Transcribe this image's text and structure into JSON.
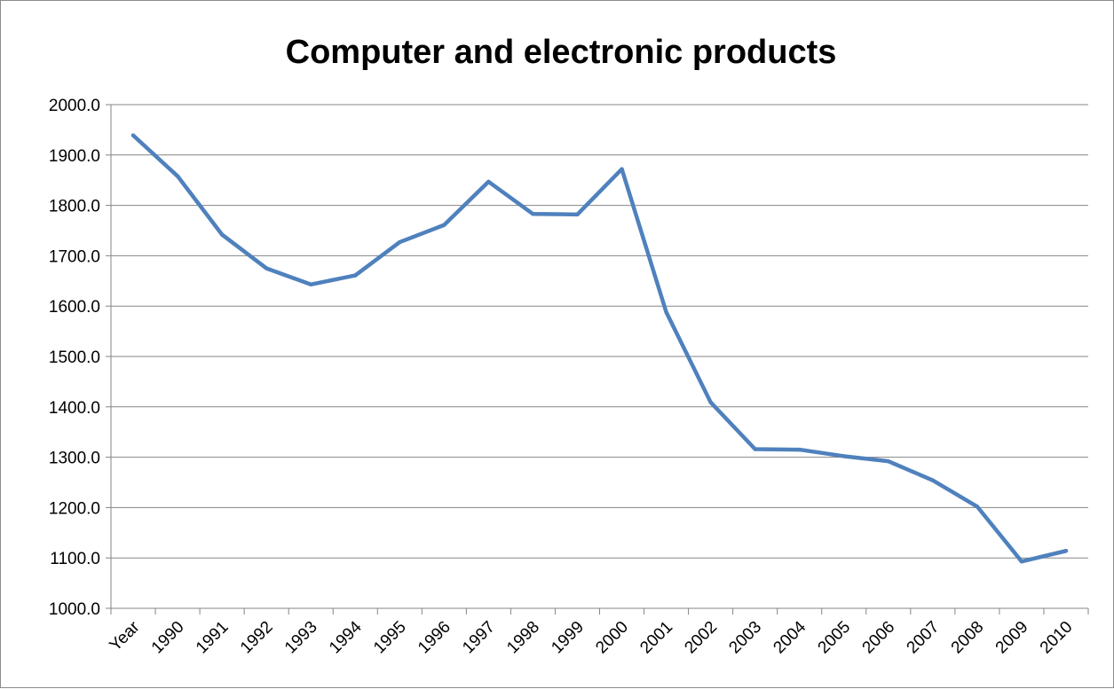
{
  "chart_data": {
    "type": "line",
    "title": "Computer and electronic products",
    "xlabel": "",
    "ylabel": "",
    "categories": [
      "Year",
      "1990",
      "1991",
      "1992",
      "1993",
      "1994",
      "1995",
      "1996",
      "1997",
      "1998",
      "1999",
      "2000",
      "2001",
      "2002",
      "2003",
      "2004",
      "2005",
      "2006",
      "2007",
      "2008",
      "2009",
      "2010"
    ],
    "series": [
      {
        "values": [
          1939,
          1858,
          1742,
          1675,
          1643,
          1661,
          1727,
          1761,
          1847,
          1783,
          1782,
          1872,
          1588,
          1409,
          1316,
          1315,
          1302,
          1292,
          1254,
          1202,
          1093,
          1114
        ]
      }
    ],
    "ylim": [
      1000,
      2000
    ],
    "yticks": [
      "1000.0",
      "1100.0",
      "1200.0",
      "1300.0",
      "1400.0",
      "1500.0",
      "1600.0",
      "1700.0",
      "1800.0",
      "1900.0",
      "2000.0"
    ],
    "grid": true,
    "legend": "none",
    "line_color": "#4f81bd",
    "grid_color": "#868686"
  }
}
